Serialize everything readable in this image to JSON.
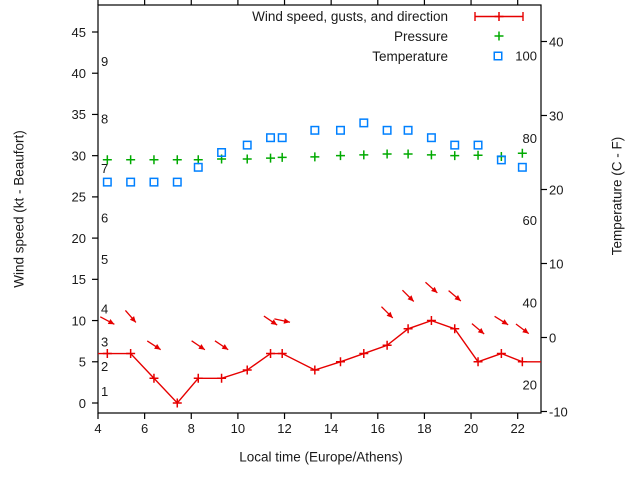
{
  "page": {
    "background": "#ffffff"
  },
  "colors": {
    "wind": "#e60000",
    "pressure": "#00aa00",
    "temperature": "#0080ff",
    "axis": "#000000",
    "text": "#1a1a1a"
  },
  "legend": {
    "position": "inside-top-right",
    "items": [
      {
        "label": "Wind speed, gusts, and direction",
        "marker": "errorbar-plus",
        "color": "#e60000"
      },
      {
        "label": "Pressure",
        "marker": "plus",
        "color": "#00aa00"
      },
      {
        "label": "Temperature",
        "marker": "open-square",
        "color": "#0080ff"
      }
    ]
  },
  "chart_data": {
    "type": "line",
    "title": "",
    "x_label": "Local time (Europe/Athens)",
    "x_range": [
      4,
      23
    ],
    "x_ticks": [
      4,
      6,
      8,
      10,
      12,
      14,
      16,
      18,
      20,
      22
    ],
    "x_hours": [
      4.4,
      5.4,
      6.4,
      7.4,
      8.3,
      9.3,
      10.4,
      11.4,
      11.9,
      13.3,
      14.4,
      15.4,
      16.4,
      17.3,
      18.3,
      19.3,
      20.3,
      21.3,
      22.2
    ],
    "grid": false,
    "y_left": {
      "label": "Wind speed (kt - Beaufort)",
      "ticks_kt": [
        0,
        5,
        10,
        15,
        20,
        25,
        30,
        35,
        40,
        45
      ],
      "inner_labels_beaufort": [
        {
          "bft": "1",
          "at_kt": 1
        },
        {
          "bft": "2",
          "at_kt": 4
        },
        {
          "bft": "3",
          "at_kt": 7
        },
        {
          "bft": "4",
          "at_kt": 11
        },
        {
          "bft": "5",
          "at_kt": 17
        },
        {
          "bft": "6",
          "at_kt": 22
        },
        {
          "bft": "7",
          "at_kt": 28
        },
        {
          "bft": "8",
          "at_kt": 34
        },
        {
          "bft": "9",
          "at_kt": 41
        }
      ]
    },
    "y_right": {
      "label": "Temperature (C - F)",
      "ticks_c": [
        -10,
        0,
        10,
        20,
        30,
        40
      ],
      "inner_labels_f": [
        20,
        40,
        60,
        80,
        100
      ]
    },
    "series": [
      {
        "id": "wind_speed",
        "legend": "Wind speed, gusts, and direction",
        "style": "linespoints",
        "marker": "plus",
        "color": "#e60000",
        "axis": "left",
        "unit": "kt",
        "values": [
          6,
          6,
          3,
          0,
          3,
          3,
          4,
          6,
          6,
          4,
          5,
          6,
          7,
          9,
          10,
          9,
          5,
          6,
          5
        ],
        "edge_extend": {
          "left_kt": 6,
          "right_kt": 5
        }
      },
      {
        "id": "wind_gusts_direction",
        "legend": "",
        "style": "direction-arrows",
        "color": "#e60000",
        "axis": "left",
        "unit": "kt",
        "values": [
          10,
          10.5,
          7,
          null,
          7,
          7,
          null,
          10,
          10,
          null,
          null,
          null,
          11,
          13,
          14,
          13,
          9,
          10,
          9
        ],
        "arrow_angles_deg_below_horizontal": [
          28,
          49,
          33,
          null,
          34,
          34,
          null,
          34,
          12,
          null,
          null,
          null,
          45,
          45,
          42,
          40,
          40,
          32,
          37
        ],
        "note": "arrows point down-right (wind from NW quadrant)"
      },
      {
        "id": "pressure",
        "legend": "Pressure",
        "style": "points",
        "marker": "plus",
        "color": "#00aa00",
        "axis": "unlabeled (no visible scale)",
        "values_left_axis_units": [
          29.5,
          29.5,
          29.5,
          29.5,
          29.5,
          29.6,
          29.6,
          29.7,
          29.8,
          29.85,
          30.0,
          30.1,
          30.2,
          30.2,
          30.1,
          30.0,
          30.05,
          29.9,
          30.3
        ]
      },
      {
        "id": "temperature",
        "legend": "Temperature",
        "style": "points",
        "marker": "open-square",
        "color": "#0080ff",
        "axis": "right",
        "unit": "C",
        "values": [
          21,
          21,
          21,
          21,
          23,
          25,
          26,
          27,
          27,
          28,
          28,
          29,
          28,
          28,
          27,
          26,
          26,
          24,
          23
        ]
      }
    ]
  }
}
